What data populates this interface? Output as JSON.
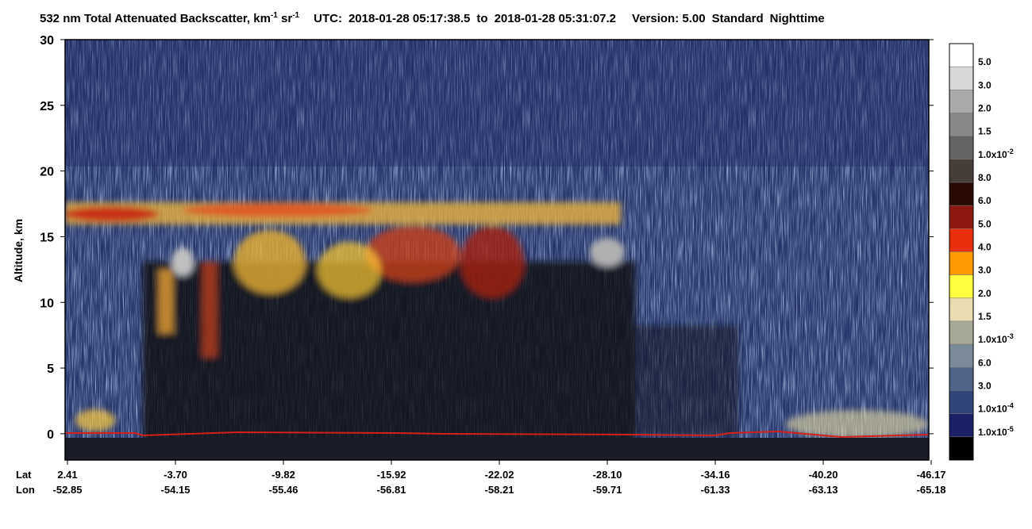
{
  "chart_data": {
    "type": "heatmap",
    "title": "532 nm Total Attenuated Backscatter,",
    "units": [
      {
        "base": "km",
        "exp": "-1"
      },
      {
        "base": "sr",
        "exp": "-1"
      }
    ],
    "utc_label": "UTC:",
    "start_time": "2018-01-28 05:17:38.5",
    "to": "to",
    "end_time": "2018-01-28 05:31:07.2",
    "version": "Version: 5.00",
    "product": "Standard",
    "lighting": "Nighttime",
    "ylabel": "Altitude, km",
    "ylim": [
      -2,
      30
    ],
    "yticks": [
      0,
      5,
      10,
      15,
      20,
      25,
      30
    ],
    "x_rows": [
      {
        "name": "Lat",
        "labels": [
          "2.41",
          "-3.70",
          "-9.82",
          "-15.92",
          "-22.02",
          "-28.10",
          "-34.16",
          "-40.20",
          "-46.17"
        ]
      },
      {
        "name": "Lon",
        "labels": [
          "-52.85",
          "-54.15",
          "-55.46",
          "-56.81",
          "-58.21",
          "-59.71",
          "-61.33",
          "-63.13",
          "-65.18"
        ]
      }
    ],
    "colorbar": {
      "colors": [
        "#ffffff",
        "#d8d8d8",
        "#aaaaaa",
        "#888888",
        "#646464",
        "#463c38",
        "#2a0a04",
        "#8c1810",
        "#e8300c",
        "#ff9a00",
        "#ffff40",
        "#e8dcb0",
        "#a8a898",
        "#7a8a98",
        "#50648a",
        "#324578",
        "#1c2068",
        "#000000"
      ],
      "labels": [
        {
          "base": "5.0"
        },
        {
          "base": "3.0"
        },
        {
          "base": "2.0"
        },
        {
          "base": "1.5"
        },
        {
          "base": "1.0x10",
          "exp": "-2"
        },
        {
          "base": "8.0"
        },
        {
          "base": "6.0"
        },
        {
          "base": "5.0"
        },
        {
          "base": "4.0"
        },
        {
          "base": "3.0"
        },
        {
          "base": "2.0"
        },
        {
          "base": "1.5"
        },
        {
          "base": "1.0x10",
          "exp": "-3"
        },
        {
          "base": "6.0"
        },
        {
          "base": "3.0"
        },
        {
          "base": "1.0x10",
          "exp": "-4"
        },
        {
          "base": "1.0x10",
          "exp": "-5"
        }
      ]
    }
  }
}
